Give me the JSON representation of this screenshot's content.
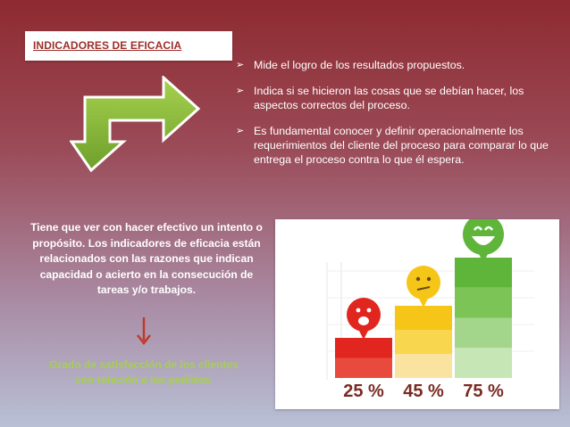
{
  "slide": {
    "title": "INDICADORES DE EFICACIA",
    "bullets": [
      "Mide el logro de los resultados propuestos.",
      "Indica si se hicieron las cosas que se debían hacer, los aspectos correctos del proceso.",
      "Es fundamental conocer y definir operacionalmente los requerimientos del cliente del proceso para comparar lo que entrega el proceso contra lo que él espera."
    ],
    "bullet_marker": "➢",
    "description": "Tiene que ver con hacer efectivo un intento o propósito. Los indicadores de eficacia están relacionados con las razones que indican capacidad o acierto en la consecución de tareas y/o trabajos.",
    "caption": "Grado de satisfacción de los clientes con relación a los pedidos.",
    "colors": {
      "title_text": "#9c2f2a",
      "arrow_green": "#8dbf3c",
      "caption_green": "#a7cf4f",
      "down_arrow": "#c0392b",
      "bar_red": "#e0261f",
      "bar_yellow": "#f5c518",
      "bar_green": "#5fb53a"
    }
  },
  "chart_data": {
    "type": "bar",
    "categories": [
      "sad",
      "neutral",
      "happy"
    ],
    "values": [
      25,
      45,
      75
    ],
    "value_labels": [
      "25 %",
      "45 %",
      "75 %"
    ],
    "face_icons": [
      "sad-face-icon",
      "neutral-face-icon",
      "happy-face-icon"
    ]
  }
}
